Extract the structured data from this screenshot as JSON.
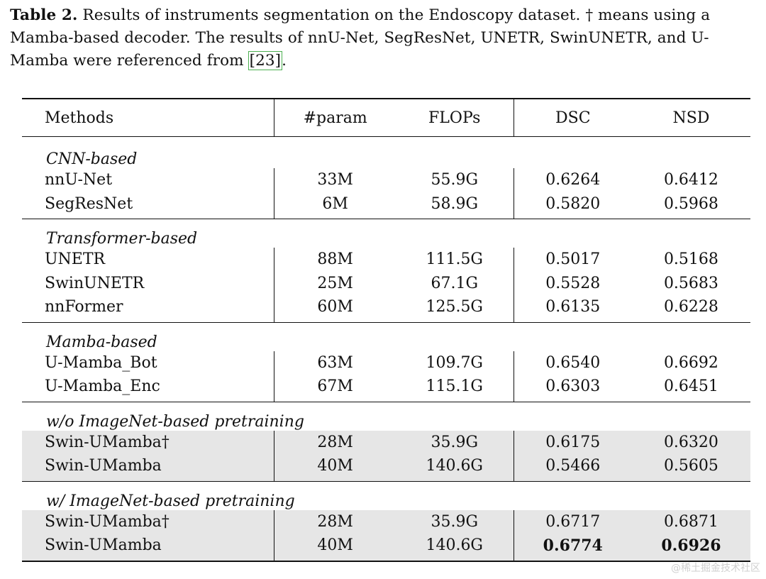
{
  "caption": {
    "label": "Table 2.",
    "text_before_ref": " Results of instruments segmentation on the Endoscopy dataset. † means using a Mamba-based decoder. The results of nnU-Net, SegResNet, UNETR, SwinUNETR, and U-Mamba were referenced from ",
    "ref": "[23]",
    "text_after_ref": "."
  },
  "table": {
    "headers": [
      "Methods",
      "#param",
      "FLOPs",
      "DSC",
      "NSD"
    ],
    "groups": [
      {
        "name": "CNN-based",
        "rows": [
          {
            "method": "nnU-Net",
            "param": "33M",
            "flops": "55.9G",
            "dsc": "0.6264",
            "nsd": "0.6412"
          },
          {
            "method": "SegResNet",
            "param": "6M",
            "flops": "58.9G",
            "dsc": "0.5820",
            "nsd": "0.5968"
          }
        ]
      },
      {
        "name": "Transformer-based",
        "rows": [
          {
            "method": "UNETR",
            "param": "88M",
            "flops": "111.5G",
            "dsc": "0.5017",
            "nsd": "0.5168"
          },
          {
            "method": "SwinUNETR",
            "param": "25M",
            "flops": "67.1G",
            "dsc": "0.5528",
            "nsd": "0.5683"
          },
          {
            "method": "nnFormer",
            "param": "60M",
            "flops": "125.5G",
            "dsc": "0.6135",
            "nsd": "0.6228"
          }
        ]
      },
      {
        "name": "Mamba-based",
        "rows": [
          {
            "method": "U-Mamba_Bot",
            "param": "63M",
            "flops": "109.7G",
            "dsc": "0.6540",
            "nsd": "0.6692"
          },
          {
            "method": "U-Mamba_Enc",
            "param": "67M",
            "flops": "115.1G",
            "dsc": "0.6303",
            "nsd": "0.6451"
          }
        ]
      },
      {
        "name": "w/o ImageNet-based pretraining",
        "rows": [
          {
            "method": "Swin-UMamba†",
            "param": "28M",
            "flops": "35.9G",
            "dsc": "0.6175",
            "nsd": "0.6320"
          },
          {
            "method": "Swin-UMamba",
            "param": "40M",
            "flops": "140.6G",
            "dsc": "0.5466",
            "nsd": "0.5605"
          }
        ]
      },
      {
        "name": "w/ ImageNet-based pretraining",
        "rows": [
          {
            "method": "Swin-UMamba†",
            "param": "28M",
            "flops": "35.9G",
            "dsc": "0.6717",
            "nsd": "0.6871"
          },
          {
            "method": "Swin-UMamba",
            "param": "40M",
            "flops": "140.6G",
            "dsc": "0.6774",
            "nsd": "0.6926"
          }
        ]
      }
    ]
  },
  "watermark": "@稀土掘金技术社区"
}
